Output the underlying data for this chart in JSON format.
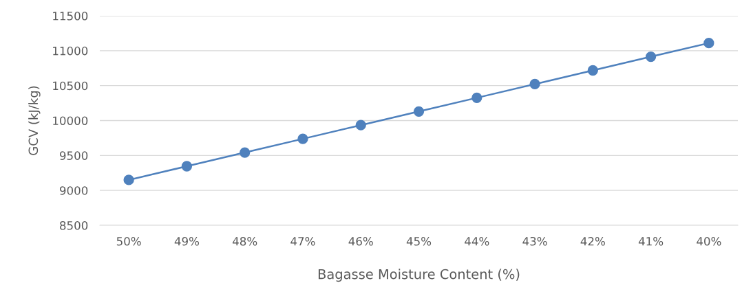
{
  "chart_data": {
    "type": "line",
    "xlabel": "Bagasse Moisture Content (%)",
    "ylabel": "GCV (kJ/kg)",
    "categories": [
      "50%",
      "49%",
      "48%",
      "47%",
      "46%",
      "45%",
      "44%",
      "43%",
      "42%",
      "41%",
      "40%"
    ],
    "series": [
      {
        "color": "#4f81bd",
        "values": [
          9150,
          9346,
          9542,
          9738,
          9934,
          10130,
          10326,
          10522,
          10718,
          10914,
          11110
        ]
      }
    ],
    "ylim": [
      8500,
      11500
    ],
    "yticks": [
      8500,
      9000,
      9500,
      10000,
      10500,
      11000,
      11500
    ],
    "grid": "y",
    "marker": "circle",
    "line_style": "solid",
    "legend": false
  }
}
